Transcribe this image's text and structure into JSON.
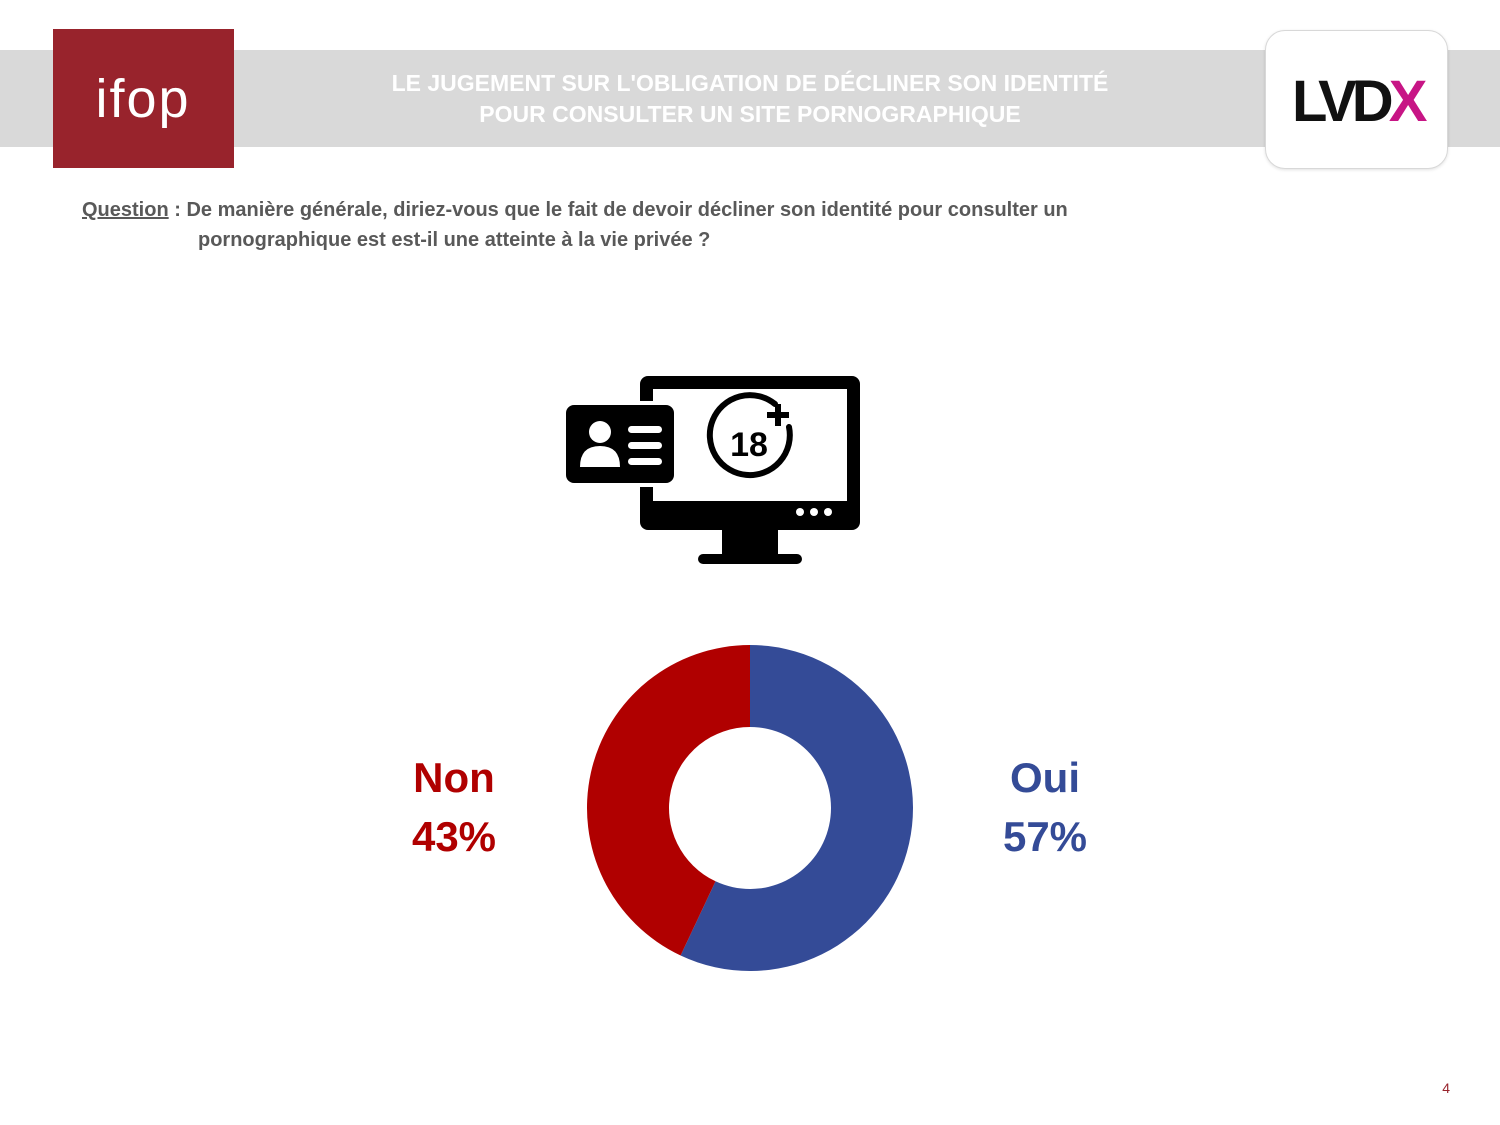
{
  "header": {
    "title_line1": "LE JUGEMENT SUR L'OBLIGATION DE DÉCLINER SON IDENTITÉ",
    "title_line2": "POUR CONSULTER UN SITE PORNOGRAPHIQUE"
  },
  "logos": {
    "left": "ifop",
    "right": {
      "text": "LVD",
      "accent": "X"
    },
    "left_color": "#98232c",
    "right_accent_color": "#c71585"
  },
  "question": {
    "label": "Question",
    "separator": " : ",
    "line1": "De manière générale, diriez-vous que le fait de devoir décliner son identité pour consulter un",
    "line2": "pornographique est est-il une atteinte à la vie privée ?"
  },
  "icon": {
    "name": "id-card-monitor-18plus-icon",
    "badge_text": "18"
  },
  "chart_data": {
    "type": "pie",
    "variant": "donut",
    "categories": [
      "Oui",
      "Non"
    ],
    "values": [
      57,
      43
    ],
    "unit": "%",
    "colors": [
      "#344b97",
      "#b00000"
    ],
    "labels": [
      {
        "category": "Oui",
        "value_text": "57%"
      },
      {
        "category": "Non",
        "value_text": "43%"
      }
    ]
  },
  "footer": {
    "page_number": "4"
  }
}
